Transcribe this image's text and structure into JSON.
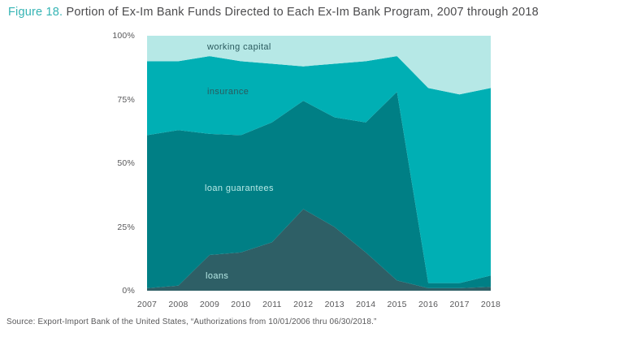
{
  "header": {
    "figure_label": "Figure 18.",
    "title": "Portion of Ex-Im Bank Funds Directed to Each Ex-Im Bank Program, 2007 through 2018"
  },
  "source": "Source: Export-Import Bank of the United States, “Authorizations from 10/01/2006 thru 06/30/2018.”",
  "colors": {
    "figure_label_accent": "#35b4b4",
    "title_text": "#4b4b4d",
    "axis_text": "#58585a",
    "loans": "#2e5f66",
    "loan_guarantees": "#007f85",
    "insurance": "#00afb4",
    "working_capital": "#b6e8e6"
  },
  "chart_data": {
    "type": "area",
    "stacked": true,
    "unit": "percent of total funds",
    "title": "Portion of Ex-Im Bank Funds Directed to Each Ex-Im Bank Program, 2007 through 2018",
    "xlabel": "",
    "ylabel": "",
    "ylim": [
      0,
      100
    ],
    "grid": false,
    "legend_position": "labels-inside-areas",
    "yticks": [
      "0%",
      "25%",
      "50%",
      "75%",
      "100%"
    ],
    "x": [
      2007,
      2008,
      2009,
      2010,
      2011,
      2012,
      2013,
      2014,
      2015,
      2016,
      2017,
      2018
    ],
    "series": [
      {
        "name": "loans",
        "color": "#2e5f66",
        "values": [
          1,
          2,
          14,
          15,
          19,
          32,
          25,
          15,
          4,
          1,
          1,
          1.5
        ]
      },
      {
        "name": "loan guarantees",
        "color": "#007f85",
        "values": [
          60,
          61,
          47.5,
          46,
          47,
          42.5,
          43,
          51,
          74,
          2,
          2,
          4.5
        ]
      },
      {
        "name": "insurance",
        "color": "#00afb4",
        "values": [
          29,
          27,
          30.5,
          29,
          23,
          13.5,
          21,
          24,
          14,
          76.5,
          74,
          73.5
        ]
      },
      {
        "name": "working capital",
        "color": "#b6e8e6",
        "values": [
          10,
          10,
          8,
          10,
          11,
          12,
          11,
          10,
          8,
          20.5,
          23,
          20.5
        ]
      }
    ]
  }
}
